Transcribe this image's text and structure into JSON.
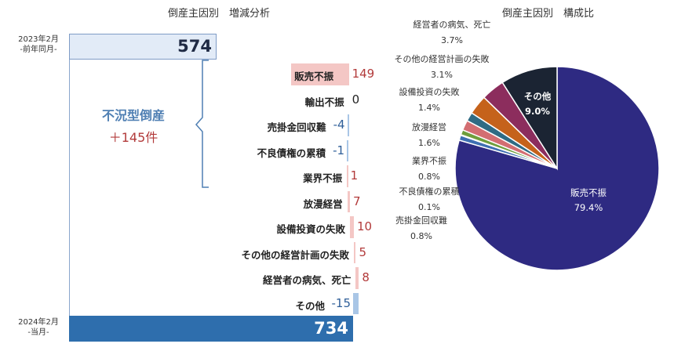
{
  "left_title": "倒産主因別　増減分析",
  "right_title": "倒産主因別　構成比",
  "prev_period": {
    "line1": "2023年2月",
    "line2": "-前年同月-",
    "value": "574"
  },
  "curr_period": {
    "line1": "2024年2月",
    "line2": "-当月-",
    "value": "734"
  },
  "group": {
    "title": "不況型倒産",
    "value": "＋145件"
  },
  "chart_data": [
    {
      "type": "bar",
      "subtype": "waterfall",
      "title": "倒産主因別　増減分析",
      "start": {
        "category": "2023年2月",
        "value": 574
      },
      "end": {
        "category": "2024年2月",
        "value": 734
      },
      "categories": [
        "販売不振",
        "輸出不振",
        "売掛金回収難",
        "不良債権の累積",
        "業界不振",
        "放漫経営",
        "設備投資の失敗",
        "その他の経営計画の失敗",
        "経営者の病気、死亡",
        "その他"
      ],
      "values": [
        149,
        0,
        -4,
        -1,
        1,
        7,
        10,
        5,
        8,
        -15
      ],
      "value_labels": [
        "149",
        "0",
        "-4",
        "-1",
        "1",
        "7",
        "10",
        "5",
        "8",
        "-15"
      ],
      "colors": {
        "increase": "#f4c7c5",
        "decrease": "#a9c6e6",
        "increase_strong": "#f2bcbc",
        "start_fill": "#e2ebf7",
        "end_fill": "#2e6ead",
        "value_pos": "#b23a3a",
        "value_neg": "#2f5f99"
      }
    },
    {
      "type": "pie",
      "title": "倒産主因別　構成比",
      "labels": [
        "販売不振",
        "売掛金回収難",
        "不良債権の累積",
        "業界不振",
        "放漫経営",
        "設備投資の失敗",
        "その他の経営計画の失敗",
        "経営者の病気、死亡",
        "その他"
      ],
      "values": [
        79.4,
        0.8,
        0.1,
        0.8,
        1.6,
        1.4,
        3.1,
        3.7,
        9.0
      ],
      "value_labels": [
        "79.4%",
        "0.8%",
        "0.1%",
        "0.8%",
        "1.6%",
        "1.4%",
        "3.1%",
        "3.7%",
        "9.0%"
      ],
      "colors": [
        "#2e2a82",
        "#3e6fb2",
        "#7d7d3a",
        "#6f9e3c",
        "#d36e72",
        "#2f6b84",
        "#c5621b",
        "#8c2d5d",
        "#1b2433"
      ]
    }
  ]
}
